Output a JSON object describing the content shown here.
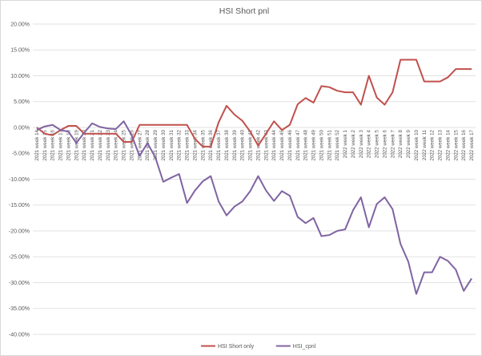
{
  "chart_data": {
    "type": "line",
    "title": "HSI Short pnl",
    "xlabel": "",
    "ylabel": "",
    "ylim": [
      -0.4,
      0.2
    ],
    "yticks": [
      0.2,
      0.15,
      0.1,
      0.05,
      0.0,
      -0.05,
      -0.1,
      -0.15,
      -0.2,
      -0.25,
      -0.3,
      -0.35,
      -0.4
    ],
    "ytick_labels": [
      "20.00%",
      "15.00%",
      "10.00%",
      "5.00%",
      "0.00%",
      "-5.00%",
      "-10.00%",
      "-15.00%",
      "-20.00%",
      "-25.00%",
      "-30.00%",
      "-35.00%",
      "-40.00%"
    ],
    "grid": true,
    "legend_position": "bottom",
    "categories": [
      "2021 week 14",
      "2021 week 15",
      "2021 week 16",
      "2021 week 17",
      "2021 week 18",
      "2021 week 19",
      "2021 week 20",
      "2021 week 21",
      "2021 week 22",
      "2021 week 23",
      "2021 week 24",
      "2021 week 25",
      "2021 week 26",
      "2021 week 27",
      "2021 week 28",
      "2021 week 29",
      "2021 week 30",
      "2021 week 31",
      "2021 week 32",
      "2021 week 33",
      "2021 week 34",
      "2021 week 35",
      "2021 week 36",
      "2021 week 37",
      "2021 week 38",
      "2021 week 39",
      "2021 week 40",
      "2021 week 41",
      "2021 week 42",
      "2021 week 43",
      "2021 week 44",
      "2021 week 45",
      "2021 week 46",
      "2021 week 47",
      "2021 week 48",
      "2021 week 49",
      "2021 week 50",
      "2021 week 51",
      "2021 week 52",
      "2022 week 1",
      "2022 week 2",
      "2022 week 3",
      "2022 week 4",
      "2022 week 5",
      "2022 week 6",
      "2022 week 7",
      "2022 week 8",
      "2022 week 9",
      "2022 week 10",
      "2022 week 11",
      "2022 week 12",
      "2022 week 13",
      "2022 week 14",
      "2022 week 15",
      "2022 week 16",
      "2022 week 17"
    ],
    "series": [
      {
        "name": "HSI Short only",
        "color": "#c0504d",
        "values": [
          0.0,
          -0.012,
          -0.015,
          -0.005,
          0.003,
          0.003,
          -0.012,
          -0.012,
          -0.012,
          -0.012,
          -0.012,
          -0.028,
          -0.028,
          0.005,
          0.005,
          0.005,
          0.005,
          0.005,
          0.005,
          0.005,
          -0.022,
          -0.037,
          -0.037,
          0.01,
          0.042,
          0.025,
          0.013,
          -0.008,
          -0.035,
          -0.012,
          0.012,
          -0.005,
          0.005,
          0.045,
          0.057,
          0.048,
          0.08,
          0.078,
          0.071,
          0.068,
          0.068,
          0.044,
          0.1,
          0.058,
          0.044,
          0.068,
          0.131,
          0.131,
          0.131,
          0.089,
          0.089,
          0.089,
          0.097,
          0.113,
          0.113,
          0.113
        ]
      },
      {
        "name": "HSI_cpnl",
        "color": "#8064a2",
        "values": [
          -0.005,
          0.002,
          0.005,
          -0.005,
          -0.008,
          -0.03,
          -0.01,
          0.008,
          0.001,
          -0.002,
          -0.003,
          0.012,
          -0.015,
          -0.055,
          -0.03,
          -0.058,
          -0.105,
          -0.097,
          -0.09,
          -0.146,
          -0.122,
          -0.104,
          -0.094,
          -0.143,
          -0.17,
          -0.153,
          -0.143,
          -0.123,
          -0.094,
          -0.122,
          -0.142,
          -0.123,
          -0.132,
          -0.173,
          -0.185,
          -0.175,
          -0.21,
          -0.208,
          -0.2,
          -0.197,
          -0.16,
          -0.135,
          -0.193,
          -0.148,
          -0.135,
          -0.158,
          -0.225,
          -0.26,
          -0.322,
          -0.28,
          -0.28,
          -0.25,
          -0.258,
          -0.275,
          -0.316,
          -0.292
        ]
      }
    ]
  }
}
